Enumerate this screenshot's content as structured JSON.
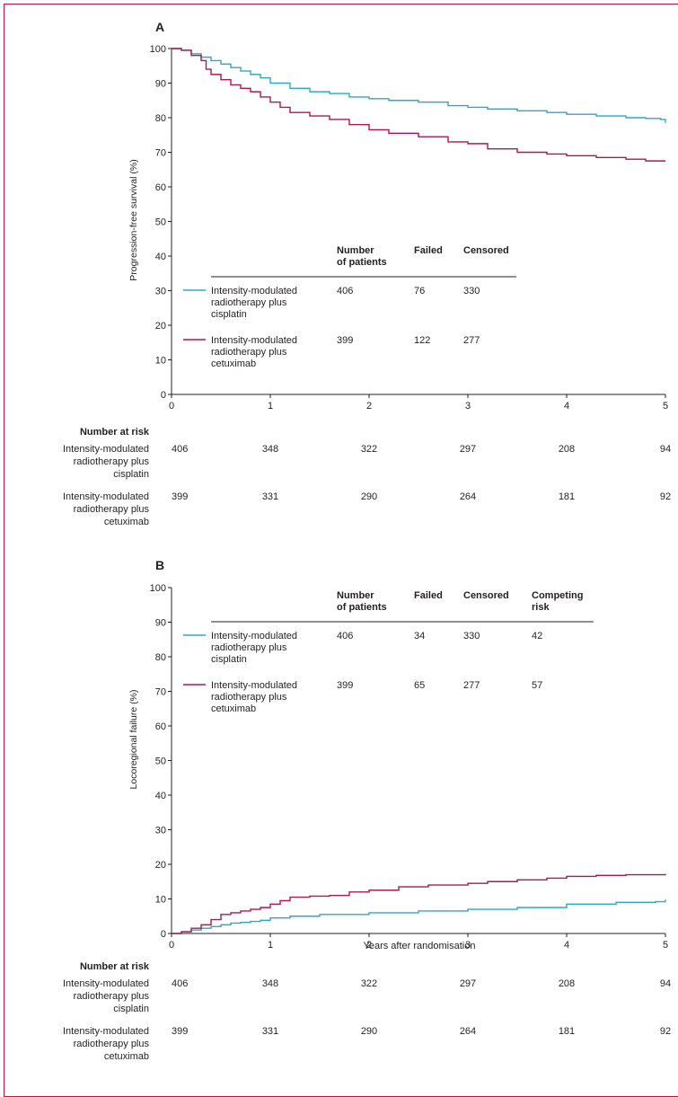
{
  "colors": {
    "cisplatin": "#2ea7c9",
    "cetuximab": "#b0174a",
    "frame": "#b8163a"
  },
  "chart_data": [
    {
      "panel": "A",
      "type": "line",
      "ylabel": "Progression-free survival (%)",
      "xlabel": "",
      "xlim": [
        0,
        5
      ],
      "ylim": [
        0,
        100
      ],
      "xticks": [
        "0",
        "1",
        "2",
        "3",
        "4",
        "5"
      ],
      "yticks": [
        "0",
        "10",
        "20",
        "30",
        "40",
        "50",
        "60",
        "70",
        "80",
        "90",
        "100"
      ],
      "legend": {
        "headers": [
          [
            "Number",
            "of patients"
          ],
          [
            "Failed"
          ],
          [
            "Censored"
          ]
        ],
        "rows": [
          {
            "lines": [
              "Intensity-modulated",
              "radiotherapy plus",
              "cisplatin"
            ],
            "values": [
              "406",
              "76",
              "330"
            ]
          },
          {
            "lines": [
              "Intensity-modulated",
              "radiotherapy plus",
              "cetuximab"
            ],
            "values": [
              "399",
              "122",
              "277"
            ]
          }
        ]
      },
      "series": [
        {
          "name": "Intensity-modulated radiotherapy plus cisplatin",
          "x": [
            0,
            0.1,
            0.2,
            0.3,
            0.4,
            0.5,
            0.6,
            0.7,
            0.8,
            0.9,
            1.0,
            1.2,
            1.4,
            1.6,
            1.8,
            2.0,
            2.2,
            2.5,
            2.8,
            3.0,
            3.2,
            3.5,
            3.8,
            4.0,
            4.3,
            4.6,
            4.8,
            4.95,
            5.0
          ],
          "y": [
            100,
            99.5,
            98.5,
            97.5,
            96.5,
            95.5,
            94.5,
            93.5,
            92.5,
            91.5,
            90,
            88.5,
            87.5,
            87,
            86,
            85.5,
            85,
            84.5,
            83.5,
            83,
            82.5,
            82,
            81.5,
            81,
            80.5,
            80,
            79.8,
            79.5,
            78.5
          ]
        },
        {
          "name": "Intensity-modulated radiotherapy plus cetuximab",
          "x": [
            0,
            0.1,
            0.2,
            0.3,
            0.35,
            0.4,
            0.5,
            0.6,
            0.7,
            0.8,
            0.9,
            1.0,
            1.1,
            1.2,
            1.4,
            1.6,
            1.8,
            2.0,
            2.2,
            2.5,
            2.8,
            3.0,
            3.2,
            3.5,
            3.8,
            4.0,
            4.3,
            4.6,
            4.8,
            5.0
          ],
          "y": [
            100,
            99.5,
            98,
            96.5,
            94,
            92.5,
            91,
            89.5,
            88.5,
            87.5,
            86,
            84.5,
            83,
            81.5,
            80.5,
            79.5,
            78,
            76.5,
            75.5,
            74.5,
            73,
            72.5,
            71,
            70,
            69.5,
            69,
            68.5,
            68,
            67.5,
            67.5
          ]
        }
      ]
    },
    {
      "panel": "B",
      "type": "line",
      "ylabel": "Locoregional failure (%)",
      "xlabel": "Years after randomisation",
      "xlim": [
        0,
        5
      ],
      "ylim": [
        0,
        100
      ],
      "xticks": [
        "0",
        "1",
        "2",
        "3",
        "4",
        "5"
      ],
      "yticks": [
        "0",
        "10",
        "20",
        "30",
        "40",
        "50",
        "60",
        "70",
        "80",
        "90",
        "100"
      ],
      "legend": {
        "headers": [
          [
            "Number",
            "of patients"
          ],
          [
            "Failed"
          ],
          [
            "Censored"
          ],
          [
            "Competing",
            "risk"
          ]
        ],
        "rows": [
          {
            "lines": [
              "Intensity-modulated",
              "radiotherapy plus",
              "cisplatin"
            ],
            "values": [
              "406",
              "34",
              "330",
              "42"
            ]
          },
          {
            "lines": [
              "Intensity-modulated",
              "radiotherapy plus",
              "cetuximab"
            ],
            "values": [
              "399",
              "65",
              "277",
              "57"
            ]
          }
        ]
      },
      "series": [
        {
          "name": "Intensity-modulated radiotherapy plus cisplatin",
          "x": [
            0,
            0.1,
            0.2,
            0.3,
            0.4,
            0.5,
            0.6,
            0.7,
            0.8,
            0.9,
            1.0,
            1.2,
            1.5,
            2.0,
            2.5,
            3.0,
            3.5,
            4.0,
            4.5,
            4.9,
            5.0
          ],
          "y": [
            0,
            0.5,
            1,
            1.5,
            2,
            2.5,
            3,
            3.2,
            3.5,
            3.8,
            4.5,
            5,
            5.5,
            6,
            6.5,
            7,
            7.5,
            8.5,
            9,
            9.2,
            9.8
          ]
        },
        {
          "name": "Intensity-modulated radiotherapy plus cetuximab",
          "x": [
            0,
            0.1,
            0.2,
            0.3,
            0.4,
            0.5,
            0.6,
            0.7,
            0.8,
            0.9,
            1.0,
            1.1,
            1.2,
            1.4,
            1.6,
            1.8,
            2.0,
            2.3,
            2.6,
            3.0,
            3.2,
            3.5,
            3.8,
            4.0,
            4.3,
            4.6,
            5.0
          ],
          "y": [
            0,
            0.5,
            1.5,
            2.5,
            4,
            5.5,
            6,
            6.5,
            7,
            7.5,
            8.5,
            9.5,
            10.5,
            10.8,
            11,
            12,
            12.5,
            13.5,
            14,
            14.5,
            15,
            15.5,
            16,
            16.5,
            16.8,
            17,
            17.2
          ]
        }
      ]
    }
  ],
  "risk_tables": [
    {
      "header": "Number at risk",
      "rows": [
        {
          "lines": [
            "Intensity-modulated",
            "radiotherapy plus",
            "cisplatin"
          ],
          "values": [
            "406",
            "348",
            "322",
            "297",
            "208",
            "94"
          ]
        },
        {
          "lines": [
            "Intensity-modulated",
            "radiotherapy plus",
            "cetuximab"
          ],
          "values": [
            "399",
            "331",
            "290",
            "264",
            "181",
            "92"
          ]
        }
      ]
    },
    {
      "header": "Number at risk",
      "rows": [
        {
          "lines": [
            "Intensity-modulated",
            "radiotherapy plus",
            "cisplatin"
          ],
          "values": [
            "406",
            "348",
            "322",
            "297",
            "208",
            "94"
          ]
        },
        {
          "lines": [
            "Intensity-modulated",
            "radiotherapy plus",
            "cetuximab"
          ],
          "values": [
            "399",
            "331",
            "290",
            "264",
            "181",
            "92"
          ]
        }
      ]
    }
  ]
}
